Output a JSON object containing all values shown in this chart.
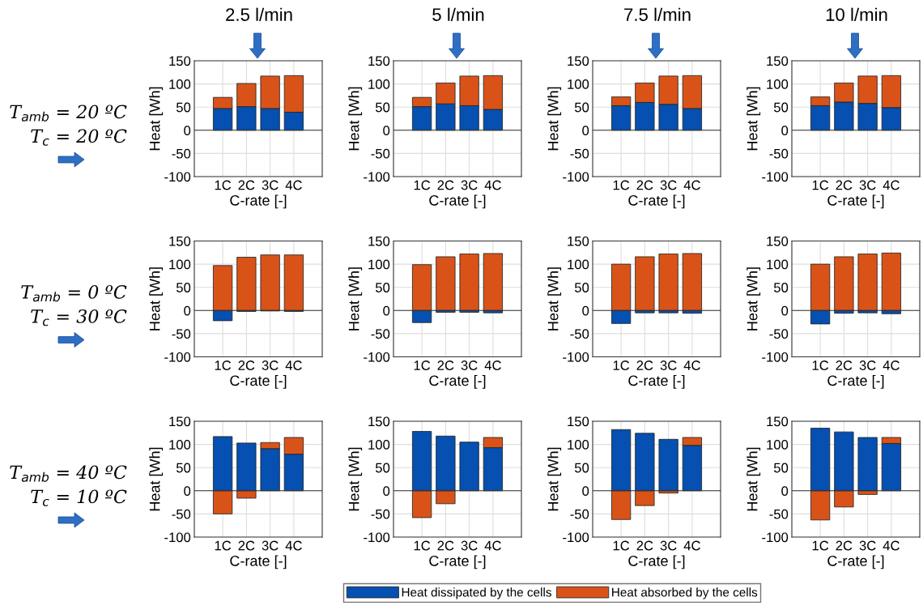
{
  "chart_data": [
    {
      "type": "bar",
      "stacked": true,
      "title": "2.5 l/min",
      "annotations": [
        "T$_{amb}$ = 20 ºC",
        "T$_{c}$ = 20 ºC"
      ],
      "xlabel": "C-rate [-]",
      "ylabel": "Heat [Wh]",
      "categories": [
        "1C",
        "2C",
        "3C",
        "4C"
      ],
      "ylim": [
        -100,
        150
      ],
      "yticks": [
        -100,
        -50,
        0,
        50,
        100,
        150
      ],
      "grid": true,
      "series": [
        {
          "color": "#0550b0",
          "values": [
            47,
            51,
            47,
            39
          ]
        },
        {
          "color": "#d95319",
          "values": [
            24,
            50,
            70,
            79
          ]
        }
      ]
    },
    {
      "type": "bar",
      "stacked": true,
      "title": "5 l/min",
      "xlabel": "C-rate [-]",
      "ylabel": "Heat [Wh]",
      "categories": [
        "1C",
        "2C",
        "3C",
        "4C"
      ],
      "ylim": [
        -100,
        150
      ],
      "yticks": [
        -100,
        -50,
        0,
        50,
        100,
        150
      ],
      "grid": true,
      "series": [
        {
          "color": "#0550b0",
          "values": [
            51,
            57,
            53,
            45
          ]
        },
        {
          "color": "#d95319",
          "values": [
            20,
            45,
            64,
            73
          ]
        }
      ]
    },
    {
      "type": "bar",
      "stacked": true,
      "title": "7.5 l/min",
      "xlabel": "C-rate [-]",
      "ylabel": "Heat [Wh]",
      "categories": [
        "1C",
        "2C",
        "3C",
        "4C"
      ],
      "ylim": [
        -100,
        150
      ],
      "yticks": [
        -100,
        -50,
        0,
        50,
        100,
        150
      ],
      "grid": true,
      "series": [
        {
          "color": "#0550b0",
          "values": [
            53,
            60,
            56,
            47
          ]
        },
        {
          "color": "#d95319",
          "values": [
            19,
            42,
            61,
            71
          ]
        }
      ]
    },
    {
      "type": "bar",
      "stacked": true,
      "title": "10 l/min",
      "xlabel": "C-rate [-]",
      "ylabel": "Heat [Wh]",
      "categories": [
        "1C",
        "2C",
        "3C",
        "4C"
      ],
      "ylim": [
        -100,
        150
      ],
      "yticks": [
        -100,
        -50,
        0,
        50,
        100,
        150
      ],
      "grid": true,
      "series": [
        {
          "color": "#0550b0",
          "values": [
            53,
            61,
            58,
            49
          ]
        },
        {
          "color": "#d95319",
          "values": [
            19,
            41,
            59,
            69
          ]
        }
      ]
    },
    {
      "type": "bar",
      "stacked": true,
      "annotations": [
        "T$_{amb}$ = 0 ºC",
        "T$_{c}$ = 30 ºC"
      ],
      "xlabel": "C-rate [-]",
      "ylabel": "Heat [Wh]",
      "categories": [
        "1C",
        "2C",
        "3C",
        "4C"
      ],
      "ylim": [
        -100,
        150
      ],
      "yticks": [
        -100,
        -50,
        0,
        50,
        100,
        150
      ],
      "grid": true,
      "series": [
        {
          "color": "#0550b0",
          "values": [
            -22,
            -2,
            -1,
            -2
          ]
        },
        {
          "color": "#d95319",
          "values": [
            97,
            115,
            120,
            120
          ]
        }
      ]
    },
    {
      "type": "bar",
      "stacked": true,
      "xlabel": "C-rate [-]",
      "ylabel": "Heat [Wh]",
      "categories": [
        "1C",
        "2C",
        "3C",
        "4C"
      ],
      "ylim": [
        -100,
        150
      ],
      "yticks": [
        -100,
        -50,
        0,
        50,
        100,
        150
      ],
      "grid": true,
      "series": [
        {
          "color": "#0550b0",
          "values": [
            -26,
            -4,
            -4,
            -5
          ]
        },
        {
          "color": "#d95319",
          "values": [
            99,
            116,
            122,
            123
          ]
        }
      ]
    },
    {
      "type": "bar",
      "stacked": true,
      "xlabel": "C-rate [-]",
      "ylabel": "Heat [Wh]",
      "categories": [
        "1C",
        "2C",
        "3C",
        "4C"
      ],
      "ylim": [
        -100,
        150
      ],
      "yticks": [
        -100,
        -50,
        0,
        50,
        100,
        150
      ],
      "grid": true,
      "series": [
        {
          "color": "#0550b0",
          "values": [
            -28,
            -5,
            -5,
            -6
          ]
        },
        {
          "color": "#d95319",
          "values": [
            100,
            116,
            122,
            123
          ]
        }
      ]
    },
    {
      "type": "bar",
      "stacked": true,
      "xlabel": "C-rate [-]",
      "ylabel": "Heat [Wh]",
      "categories": [
        "1C",
        "2C",
        "3C",
        "4C"
      ],
      "ylim": [
        -100,
        150
      ],
      "yticks": [
        -100,
        -50,
        0,
        50,
        100,
        150
      ],
      "grid": true,
      "series": [
        {
          "color": "#0550b0",
          "values": [
            -29,
            -6,
            -5,
            -7
          ]
        },
        {
          "color": "#d95319",
          "values": [
            100,
            116,
            122,
            124
          ]
        }
      ]
    },
    {
      "type": "bar",
      "stacked": true,
      "annotations": [
        "T$_{amb}$ = 40 ºC",
        "T$_{c}$ = 10 ºC"
      ],
      "xlabel": "C-rate [-]",
      "ylabel": "Heat [Wh]",
      "categories": [
        "1C",
        "2C",
        "3C",
        "4C"
      ],
      "ylim": [
        -100,
        150
      ],
      "yticks": [
        -100,
        -50,
        0,
        50,
        100,
        150
      ],
      "grid": true,
      "series": [
        {
          "color": "#0550b0",
          "values": [
            117,
            103,
            91,
            79
          ]
        },
        {
          "color": "#d95319",
          "values": [
            -50,
            -16,
            13,
            36
          ]
        }
      ]
    },
    {
      "type": "bar",
      "stacked": true,
      "xlabel": "C-rate [-]",
      "ylabel": "Heat [Wh]",
      "categories": [
        "1C",
        "2C",
        "3C",
        "4C"
      ],
      "ylim": [
        -100,
        150
      ],
      "yticks": [
        -100,
        -50,
        0,
        50,
        100,
        150
      ],
      "grid": true,
      "series": [
        {
          "color": "#0550b0",
          "values": [
            128,
            118,
            105,
            93
          ]
        },
        {
          "color": "#d95319",
          "values": [
            -58,
            -28,
            null,
            22
          ]
        }
      ]
    },
    {
      "type": "bar",
      "stacked": true,
      "xlabel": "C-rate [-]",
      "ylabel": "Heat [Wh]",
      "categories": [
        "1C",
        "2C",
        "3C",
        "4C"
      ],
      "ylim": [
        -100,
        150
      ],
      "yticks": [
        -100,
        -50,
        0,
        50,
        100,
        150
      ],
      "grid": true,
      "series": [
        {
          "color": "#0550b0",
          "values": [
            132,
            124,
            111,
            98
          ]
        },
        {
          "color": "#d95319",
          "values": [
            -62,
            -32,
            -5,
            17
          ]
        }
      ]
    },
    {
      "type": "bar",
      "stacked": true,
      "xlabel": "C-rate [-]",
      "ylabel": "Heat [Wh]",
      "categories": [
        "1C",
        "2C",
        "3C",
        "4C"
      ],
      "ylim": [
        -100,
        150
      ],
      "yticks": [
        -100,
        -50,
        0,
        50,
        100,
        150
      ],
      "grid": true,
      "legend": "bottom",
      "series": [
        {
          "name": "Heat dissipated by the cells",
          "color": "#0550b0",
          "values": [
            135,
            127,
            115,
            102
          ]
        },
        {
          "name": "Heat absorbed by the cells",
          "color": "#d95319",
          "values": [
            -63,
            -35,
            -8,
            13
          ]
        }
      ]
    }
  ]
}
